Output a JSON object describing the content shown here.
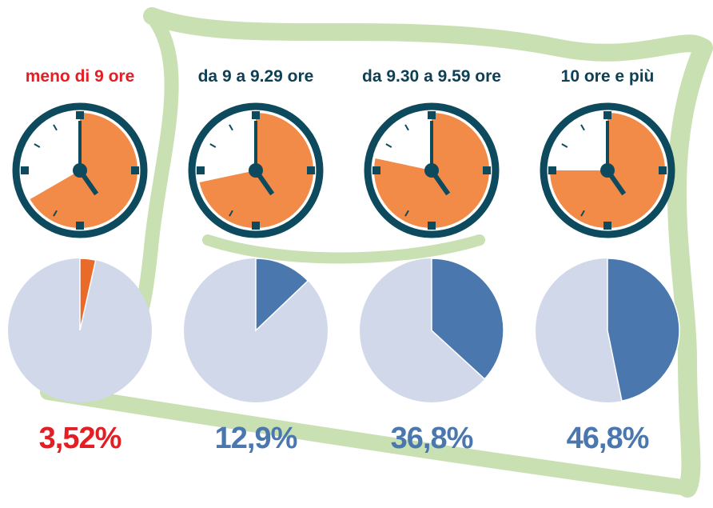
{
  "chart_data": [
    {
      "type": "pie",
      "title": "meno di 9 ore",
      "title_color": "#e31e24",
      "values": [
        3.52
      ],
      "value_labels": [
        "3,52%"
      ],
      "color": "#ea6a2a",
      "label_color": "#e31e24"
    },
    {
      "type": "pie",
      "title": "da 9 a 9.29 ore",
      "title_color": "#0d3f55",
      "values": [
        12.9
      ],
      "value_labels": [
        "12,9%"
      ],
      "color": "#4a77ae",
      "label_color": "#4a77ae"
    },
    {
      "type": "pie",
      "title": "da 9.30 a 9.59 ore",
      "title_color": "#0d3f55",
      "values": [
        36.8
      ],
      "value_labels": [
        "36,8%"
      ],
      "color": "#4a77ae",
      "label_color": "#4a77ae"
    },
    {
      "type": "pie",
      "title": "10 ore e più",
      "title_color": "#0d3f55",
      "values": [
        46.8
      ],
      "value_labels": [
        "46,8%"
      ],
      "color": "#4a77ae",
      "label_color": "#4a77ae"
    }
  ]
}
